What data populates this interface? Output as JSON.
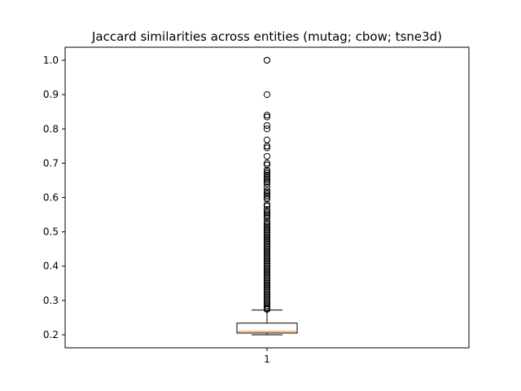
{
  "chart_data": {
    "type": "box",
    "title": "Jaccard similarities across entities (mutag; cbow; tsne3d)",
    "xlabel": "",
    "ylabel": "",
    "categories": [
      "1"
    ],
    "ylim": [
      0.162,
      1.038
    ],
    "yticks": [
      0.2,
      0.3,
      0.4,
      0.5,
      0.6,
      0.7,
      0.8,
      0.9,
      1.0
    ],
    "ytick_labels": [
      "0.2",
      "0.3",
      "0.4",
      "0.5",
      "0.6",
      "0.7",
      "0.8",
      "0.9",
      "1.0"
    ],
    "grid": false,
    "series": [
      {
        "whisker_low": 0.2,
        "q1": 0.205,
        "median": 0.21,
        "q3": 0.234,
        "whisker_high": 0.272,
        "outliers": [
          1.0,
          1.0,
          0.9,
          0.84,
          0.835,
          0.81,
          0.8,
          0.768,
          0.75,
          0.745,
          0.72,
          0.7,
          0.695,
          0.68,
          0.675,
          0.67,
          0.665,
          0.66,
          0.655,
          0.65,
          0.645,
          0.64,
          0.63,
          0.62,
          0.615,
          0.61,
          0.605,
          0.6,
          0.595,
          0.58,
          0.575,
          0.565,
          0.56,
          0.555,
          0.55,
          0.545,
          0.54,
          0.53,
          0.525,
          0.52,
          0.515,
          0.51,
          0.505,
          0.5,
          0.495,
          0.49,
          0.485,
          0.48,
          0.475,
          0.47,
          0.465,
          0.46,
          0.455,
          0.45,
          0.445,
          0.44,
          0.435,
          0.43,
          0.425,
          0.42,
          0.415,
          0.41,
          0.405,
          0.4,
          0.395,
          0.39,
          0.385,
          0.38,
          0.375,
          0.37,
          0.365,
          0.36,
          0.355,
          0.35,
          0.345,
          0.34,
          0.335,
          0.33,
          0.325,
          0.32,
          0.315,
          0.31,
          0.305,
          0.3,
          0.295,
          0.29,
          0.285,
          0.28,
          0.277,
          0.274
        ]
      }
    ],
    "colors": {
      "box": "#000000",
      "median": "#ff7f0e",
      "outlier": "#000000"
    }
  }
}
